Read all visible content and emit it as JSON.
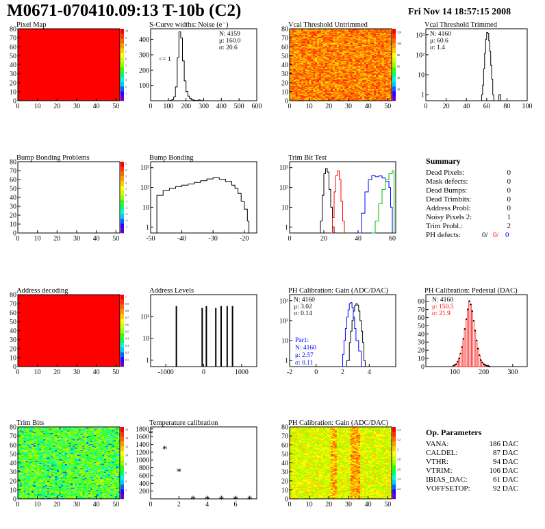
{
  "header": {
    "title": "M0671-070410.09:13 T-10b (C2)",
    "date": "Fri Nov 14 18:57:15 2008"
  },
  "colors": {
    "red": "#ff0000",
    "blue": "#0000ff",
    "green": "#00bb00",
    "black": "#000000"
  },
  "chart_data": [
    {
      "id": "pixel_map",
      "type": "heatmap",
      "title": "Pixel Map",
      "x_ticks": [
        "0",
        "10",
        "20",
        "30",
        "40",
        "50"
      ],
      "y_ticks": [
        "0",
        "10",
        "20",
        "30",
        "40",
        "50",
        "60",
        "70",
        "80"
      ],
      "xlim": [
        0,
        52
      ],
      "ylim": [
        0,
        80
      ],
      "fill": "uniform-red",
      "z_ticks": [
        "1",
        "2",
        "3",
        "4",
        "5",
        "6",
        "7",
        "8",
        "9",
        "10"
      ]
    },
    {
      "id": "scurve_widths",
      "type": "line",
      "title": "S-Curve widths: Noise (e⁻)",
      "x_ticks": [
        "0",
        "100",
        "200",
        "300",
        "400",
        "500",
        "600"
      ],
      "y_ticks": [
        "100",
        "200",
        "300",
        "400"
      ],
      "xlim": [
        0,
        600
      ],
      "ylim": [
        0,
        470
      ],
      "stats": [
        "N: 4159",
        "μ: 160.0",
        "σ: 20.6"
      ],
      "annotation": "<= 1",
      "x": [
        100,
        110,
        120,
        130,
        140,
        150,
        160,
        170,
        180,
        190,
        200,
        210,
        220,
        230,
        240,
        250,
        260,
        270,
        280,
        290,
        300
      ],
      "y": [
        0,
        2,
        8,
        25,
        90,
        280,
        450,
        410,
        260,
        130,
        60,
        30,
        15,
        8,
        4,
        2,
        2,
        6,
        1,
        1,
        0
      ]
    },
    {
      "id": "vcal_untrimmed",
      "type": "heatmap",
      "title": "Vcal Threshold Untrimmed",
      "x_ticks": [
        "0",
        "10",
        "20",
        "30",
        "40",
        "50"
      ],
      "y_ticks": [
        "0",
        "10",
        "20",
        "30",
        "40",
        "50",
        "60",
        "70",
        "80"
      ],
      "xlim": [
        0,
        52
      ],
      "ylim": [
        0,
        80
      ],
      "fill": "noisy-warm",
      "z_ticks": [
        "20",
        "40",
        "60",
        "80",
        "100",
        "120"
      ]
    },
    {
      "id": "vcal_trimmed",
      "type": "line",
      "title": "Vcal Threshold Trimmed",
      "log_y": true,
      "x_ticks": [
        "0",
        "20",
        "40",
        "60",
        "80",
        "100"
      ],
      "y_ticks": [
        "1",
        "10",
        "10²",
        "10³"
      ],
      "xlim": [
        0,
        100
      ],
      "ylim": [
        0.5,
        2000
      ],
      "stats": [
        "N: 4160",
        "μ: 60.6",
        "σ:  1.4"
      ],
      "x": [
        54,
        55,
        56,
        57,
        58,
        59,
        60,
        61,
        62,
        63,
        64,
        65,
        66,
        67,
        72,
        73,
        74
      ],
      "y": [
        0,
        1,
        3,
        20,
        120,
        600,
        1300,
        1200,
        500,
        150,
        30,
        6,
        1,
        0,
        1,
        1,
        0
      ]
    },
    {
      "id": "bump_bonding_problems",
      "type": "heatmap",
      "title": "Bump Bonding Problems",
      "x_ticks": [
        "0",
        "10",
        "20",
        "30",
        "40",
        "50"
      ],
      "y_ticks": [
        "0",
        "10",
        "20",
        "30",
        "40",
        "50",
        "60",
        "70",
        "80"
      ],
      "xlim": [
        0,
        52
      ],
      "ylim": [
        0,
        80
      ],
      "fill": "empty",
      "z_ticks": [
        "-5",
        "-4",
        "-3",
        "-2",
        "-1",
        "0",
        "1",
        "2",
        "3",
        "4",
        "5"
      ]
    },
    {
      "id": "bump_bonding",
      "type": "line",
      "title": "Bump Bonding",
      "log_y": true,
      "x_ticks": [
        "-50",
        "-40",
        "-30",
        "-20"
      ],
      "y_ticks": [
        "1",
        "10",
        "10²",
        "10³"
      ],
      "xlim": [
        -50,
        -16
      ],
      "ylim": [
        0.5,
        2000
      ],
      "x": [
        -49,
        -48,
        -46,
        -44,
        -42,
        -40,
        -38,
        -36,
        -34,
        -32,
        -30,
        -28,
        -26,
        -24,
        -23,
        -22,
        -21,
        -20,
        -19,
        -18.5
      ],
      "y": [
        0,
        40,
        70,
        90,
        110,
        130,
        150,
        180,
        220,
        270,
        310,
        260,
        200,
        130,
        90,
        50,
        20,
        8,
        2,
        0
      ]
    },
    {
      "id": "trim_bit_test",
      "type": "line",
      "title": "Trim Bit Test",
      "log_y": true,
      "x_ticks": [
        "0",
        "20",
        "40",
        "60"
      ],
      "y_ticks": [
        "1",
        "10",
        "10²",
        "10³"
      ],
      "xlim": [
        0,
        62
      ],
      "ylim": [
        0.5,
        2000
      ],
      "series": [
        {
          "color": "#000000",
          "x": [
            17,
            18,
            19,
            20,
            21,
            22,
            23,
            24,
            25,
            26
          ],
          "y": [
            0.5,
            2,
            40,
            500,
            900,
            600,
            80,
            10,
            1,
            0.5
          ]
        },
        {
          "color": "#ff0000",
          "x": [
            24,
            25,
            26,
            27,
            28,
            29,
            30,
            31,
            32
          ],
          "y": [
            0.5,
            3,
            60,
            400,
            700,
            250,
            20,
            2,
            0.5
          ]
        },
        {
          "color": "#0000ff",
          "x": [
            40,
            42,
            44,
            46,
            48,
            50,
            52,
            54,
            56,
            58,
            59,
            60
          ],
          "y": [
            0.5,
            5,
            60,
            250,
            400,
            350,
            380,
            300,
            200,
            100,
            10,
            0.5
          ]
        },
        {
          "color": "#00bb00",
          "x": [
            48,
            50,
            52,
            54,
            56,
            58,
            60,
            61
          ],
          "y": [
            0.5,
            2,
            15,
            80,
            250,
            500,
            700,
            0.5
          ]
        }
      ]
    },
    {
      "id": "address_decoding",
      "type": "heatmap",
      "title": "Address decoding",
      "x_ticks": [
        "0",
        "10",
        "20",
        "30",
        "40",
        "50"
      ],
      "y_ticks": [
        "0",
        "10",
        "20",
        "30",
        "40",
        "50",
        "60",
        "70",
        "80"
      ],
      "xlim": [
        0,
        52
      ],
      "ylim": [
        0,
        80
      ],
      "fill": "uniform-red",
      "z_ticks": [
        "0.1",
        "0.2",
        "0.3",
        "0.4",
        "0.5",
        "0.6",
        "0.7",
        "0.8",
        "0.9",
        "1"
      ]
    },
    {
      "id": "address_levels",
      "type": "bar",
      "title": "Address Levels",
      "log_y": true,
      "x_ticks": [
        "-1000",
        "0",
        "1000"
      ],
      "y_ticks": [
        "1",
        "10",
        "10²"
      ],
      "xlim": [
        -1400,
        1400
      ],
      "ylim": [
        0.5,
        1000
      ],
      "x": [
        -720,
        -40,
        70,
        320,
        460,
        620,
        760
      ],
      "y": [
        300,
        250,
        300,
        250,
        300,
        300,
        300
      ]
    },
    {
      "id": "ph_gain",
      "type": "line",
      "title": "PH Calibration: Gain (ADC/DAC)",
      "log_y": true,
      "x_ticks": [
        "-2",
        "0",
        "2",
        "4"
      ],
      "y_ticks": [
        "1",
        "10",
        "10²",
        "10³"
      ],
      "xlim": [
        -2,
        6
      ],
      "ylim": [
        0.5,
        2000
      ],
      "stats": [
        "N: 4160",
        "μ: 3.02",
        "σ: 0.14"
      ],
      "stats2": [
        "Par1:",
        "N: 4160",
        "μ: 2.57",
        "σ: 0.11"
      ],
      "series": [
        {
          "color": "#000000",
          "x": [
            2.1,
            2.3,
            2.5,
            2.6,
            2.7,
            2.8,
            2.9,
            3.0,
            3.1,
            3.2,
            3.3,
            3.4,
            3.5,
            3.6,
            3.7
          ],
          "y": [
            0.5,
            1,
            8,
            30,
            100,
            300,
            550,
            700,
            600,
            300,
            100,
            30,
            8,
            1,
            0.5
          ]
        },
        {
          "color": "#0000ff",
          "x": [
            1.8,
            2.0,
            2.1,
            2.2,
            2.3,
            2.4,
            2.5,
            2.6,
            2.7,
            2.8,
            2.9,
            3.0,
            3.2,
            3.4
          ],
          "y": [
            0.5,
            2,
            10,
            40,
            150,
            350,
            700,
            800,
            450,
            150,
            40,
            10,
            3,
            0.5
          ]
        }
      ]
    },
    {
      "id": "ph_pedestal",
      "type": "bar",
      "title": "PH Calibration: Pedestal (DAC)",
      "x_ticks": [
        "100",
        "200",
        "300"
      ],
      "y_ticks": [
        "0",
        "10",
        "20",
        "30",
        "40",
        "50",
        "60",
        "70",
        "80"
      ],
      "xlim": [
        0,
        350
      ],
      "ylim": [
        0,
        88
      ],
      "stats": [
        "N: 4160",
        "μ: 150.5",
        "σ: 21.9"
      ],
      "x": [
        95,
        100,
        105,
        110,
        115,
        120,
        125,
        130,
        135,
        140,
        145,
        150,
        155,
        160,
        165,
        170,
        175,
        180,
        185,
        190,
        195,
        200,
        205,
        210,
        215,
        220
      ],
      "y": [
        1,
        2,
        3,
        6,
        10,
        16,
        24,
        34,
        46,
        58,
        70,
        80,
        76,
        68,
        56,
        44,
        32,
        22,
        14,
        8,
        5,
        3,
        2,
        1,
        1,
        0
      ]
    },
    {
      "id": "trim_bits",
      "type": "heatmap",
      "title": "Trim Bits",
      "x_ticks": [
        "0",
        "10",
        "20",
        "30",
        "40",
        "50"
      ],
      "y_ticks": [
        "0",
        "10",
        "20",
        "30",
        "40",
        "50",
        "60",
        "70",
        "80"
      ],
      "xlim": [
        0,
        52
      ],
      "ylim": [
        0,
        80
      ],
      "fill": "noisy-green",
      "z_ticks": [
        "2",
        "4",
        "6",
        "8",
        "10",
        "12",
        "14",
        "16"
      ]
    },
    {
      "id": "temperature_calibration",
      "type": "scatter",
      "title": "Temperature calibration",
      "x_ticks": [
        "0",
        "2",
        "4",
        "6"
      ],
      "y_ticks": [
        "200",
        "400",
        "600",
        "800",
        "1000",
        "1200",
        "1400",
        "1600",
        "1800"
      ],
      "xlim": [
        0,
        7.5
      ],
      "ylim": [
        0,
        1850
      ],
      "x": [
        0,
        1,
        2,
        3,
        4,
        5,
        6,
        7
      ],
      "y": [
        1700,
        1300,
        720,
        20,
        20,
        20,
        20,
        20
      ]
    },
    {
      "id": "ph_gain_map",
      "type": "heatmap",
      "title": "PH Calibration: Gain (ADC/DAC)",
      "x_ticks": [
        "0",
        "10",
        "20",
        "30",
        "40",
        "50"
      ],
      "y_ticks": [
        "0",
        "10",
        "20",
        "30",
        "40",
        "50",
        "60",
        "70",
        "80"
      ],
      "xlim": [
        0,
        52
      ],
      "ylim": [
        0,
        80
      ],
      "fill": "noisy-column",
      "z_ticks": [
        "2.2",
        "2.4",
        "2.6",
        "2.8",
        "3",
        "3.2",
        "3.4"
      ]
    }
  ],
  "summary": {
    "title": "Summary",
    "rows": [
      {
        "label": "Dead Pixels:",
        "value": "0"
      },
      {
        "label": "Mask defects:",
        "value": "0"
      },
      {
        "label": "Dead Bumps:",
        "value": "0"
      },
      {
        "label": "Dead Trimbits:",
        "value": "0"
      },
      {
        "label": "Address Probl:",
        "value": "0"
      },
      {
        "label": "Noisy Pixels 2:",
        "value": "1"
      },
      {
        "label": "Trim Probl.:",
        "value": "2"
      }
    ],
    "ph_defects": {
      "label": "PH defects:",
      "v1": "0/",
      "v2": "0/",
      "v3": "0"
    }
  },
  "op_params": {
    "title": "Op. Parameters",
    "rows": [
      {
        "label": "VANA:",
        "value": "186 DAC"
      },
      {
        "label": "CALDEL:",
        "value": "87 DAC"
      },
      {
        "label": "VTHR:",
        "value": "94 DAC"
      },
      {
        "label": "VTRIM:",
        "value": "106 DAC"
      },
      {
        "label": "IBIAS_DAC:",
        "value": "61 DAC"
      },
      {
        "label": "VOFFSETOP:",
        "value": "92 DAC"
      }
    ]
  }
}
